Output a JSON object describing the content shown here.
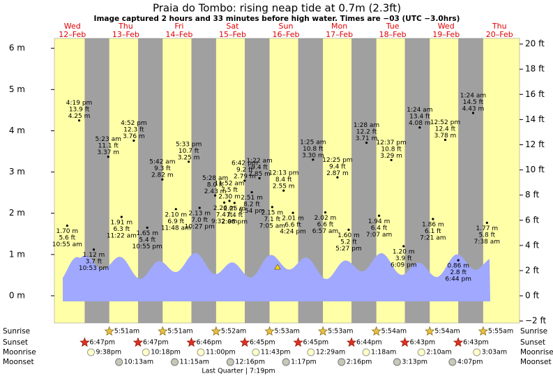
{
  "chart_data": {
    "type": "tide",
    "title": "Praia do Tombo: rising  neap tide at 0.7m (2.3ft)",
    "subtitle": "Image captured 2 hours and 33 minutes before high water. Times are −03 (UTC −3.0hrs)",
    "days": [
      {
        "weekday": "Wed",
        "date": "12–Feb"
      },
      {
        "weekday": "Thu",
        "date": "13–Feb"
      },
      {
        "weekday": "Fri",
        "date": "14–Feb"
      },
      {
        "weekday": "Sat",
        "date": "15–Feb"
      },
      {
        "weekday": "Sun",
        "date": "16–Feb"
      },
      {
        "weekday": "Mon",
        "date": "17–Feb"
      },
      {
        "weekday": "Tue",
        "date": "18–Feb"
      },
      {
        "weekday": "Wed",
        "date": "19–Feb"
      },
      {
        "weekday": "Thu",
        "date": "20–Feb"
      }
    ],
    "ylim": [
      -0.66,
      6.24
    ],
    "yticks": [
      {
        "value": 6,
        "label": "6 m"
      },
      {
        "value": 5,
        "label": "5 m"
      },
      {
        "value": 4,
        "label": "4 m"
      },
      {
        "value": 3,
        "label": "3 m"
      },
      {
        "value": 2,
        "label": "2 m"
      },
      {
        "value": 1,
        "label": "1 m"
      },
      {
        "value": 0,
        "label": "0 m"
      }
    ],
    "y2lim": [
      -2.16,
      20.45
    ],
    "y2ticks": [
      {
        "value": 20,
        "label": "20 ft"
      },
      {
        "value": 18,
        "label": "18 ft"
      },
      {
        "value": 16,
        "label": "16 ft"
      },
      {
        "value": 14,
        "label": "14 ft"
      },
      {
        "value": 12,
        "label": "12 ft"
      },
      {
        "value": 10,
        "label": "10 ft"
      },
      {
        "value": 8,
        "label": "8 ft"
      },
      {
        "value": 6,
        "label": "6 ft"
      },
      {
        "value": 4,
        "label": "4 ft"
      },
      {
        "value": 2,
        "label": "2 ft"
      },
      {
        "value": 0,
        "label": "0 ft"
      },
      {
        "value": -2,
        "label": "−2 ft"
      }
    ],
    "tide_times": [
      "10:55 am",
      "4:19 pm",
      "10:53 pm",
      "5:23 am",
      "11:22 am",
      "4:52 pm",
      "10:55 pm",
      "5:42 am",
      "11:48 am",
      "5:33 pm",
      "10:27 pm",
      "5:28 am",
      "9:32 am",
      "11:52 am",
      "2:08 pm",
      "6:42 pm",
      "9:54 pm",
      "1:22 am",
      "7:05 am",
      "12:13 pm",
      "4:24 pm",
      "1:25 am",
      "6:57 am",
      "12:25 pm",
      "5:27 pm",
      "1:28 am",
      "7:07 am",
      "12:37 pm",
      "6:09 pm",
      "1:24 am",
      "7:21 am",
      "12:52 pm",
      "6:44 pm",
      "1:24 am",
      "7:38 am"
    ],
    "values": [
      1.7,
      4.25,
      1.12,
      3.37,
      1.91,
      3.76,
      1.65,
      2.82,
      2.1,
      3.25,
      2.13,
      2.43,
      2.26,
      2.3,
      2.25,
      2.79,
      2.51,
      2.85,
      2.15,
      2.55,
      2.01,
      3.3,
      2.02,
      2.87,
      1.6,
      3.71,
      1.94,
      3.29,
      1.2,
      4.08,
      1.86,
      3.78,
      0.86,
      4.43,
      1.77
    ],
    "value_labels": [
      "1.70 m",
      "4.25 m",
      "1.12 m",
      "3.37 m",
      "1.91 m",
      "3.76 m",
      "1.65 m",
      "2.82 m",
      "2.10 m",
      "3.25 m",
      "2.13 m",
      "2.43 m",
      "2.26 m",
      "2.30 m",
      "2.25 m",
      "2.79 m",
      "2.51 m",
      "2.85 m",
      "2.15 m",
      "2.55 m",
      "2.01 m",
      "3.30 m",
      "2.02 m",
      "2.87 m",
      "1.60 m",
      "3.71 m",
      "1.94 m",
      "3.29 m",
      "1.20 m",
      "4.08 m",
      "1.86 m",
      "3.78 m",
      "0.86 m",
      "4.43 m",
      "1.77 m"
    ],
    "ft_labels": [
      "5.6 ft",
      "13.9 ft",
      "3.7 ft",
      "11.1 ft",
      "6.3 ft",
      "12.3 ft",
      "5.4 ft",
      "9.3 ft",
      "6.9 ft",
      "10.7 ft",
      "7.0 ft",
      "8.0 ft",
      "7.4 ft",
      "7.5 ft",
      "7.4 ft",
      "9.2 ft",
      "8.2 ft",
      "9.4 ft",
      "7.1 ft",
      "8.4 ft",
      "6.6 ft",
      "10.8 ft",
      "6.6 ft",
      "9.4 ft",
      "5.2 ft",
      "12.2 ft",
      "6.4 ft",
      "10.8 ft",
      "3.9 ft",
      "13.4 ft",
      "6.1 ft",
      "12.4 ft",
      "2.8 ft",
      "14.5 ft",
      "5.8 ft"
    ],
    "rows": [
      {
        "label": "Sunrise",
        "times": [
          "5:51am",
          "5:51am",
          "5:52am",
          "5:53am",
          "5:53am",
          "5:54am",
          "5:54am",
          "5:55am"
        ]
      },
      {
        "label": "Sunset",
        "times": [
          "6:47pm",
          "6:47pm",
          "6:46pm",
          "6:45pm",
          "6:45pm",
          "6:44pm",
          "6:43pm",
          "6:43pm"
        ]
      },
      {
        "label": "Moonrise",
        "times": [
          "9:38pm",
          "10:18pm",
          "11:00pm",
          "11:43pm",
          "12:29am",
          "1:18am",
          "2:10am",
          "3:03am"
        ]
      },
      {
        "label": "Moonset",
        "times": [
          "10:13am",
          "11:15am",
          "12:16pm",
          "1:17pm",
          "2:16pm",
          "3:13pm",
          "4:07pm"
        ]
      }
    ],
    "moon_phase": "Last Quarter | 7:19pm"
  }
}
